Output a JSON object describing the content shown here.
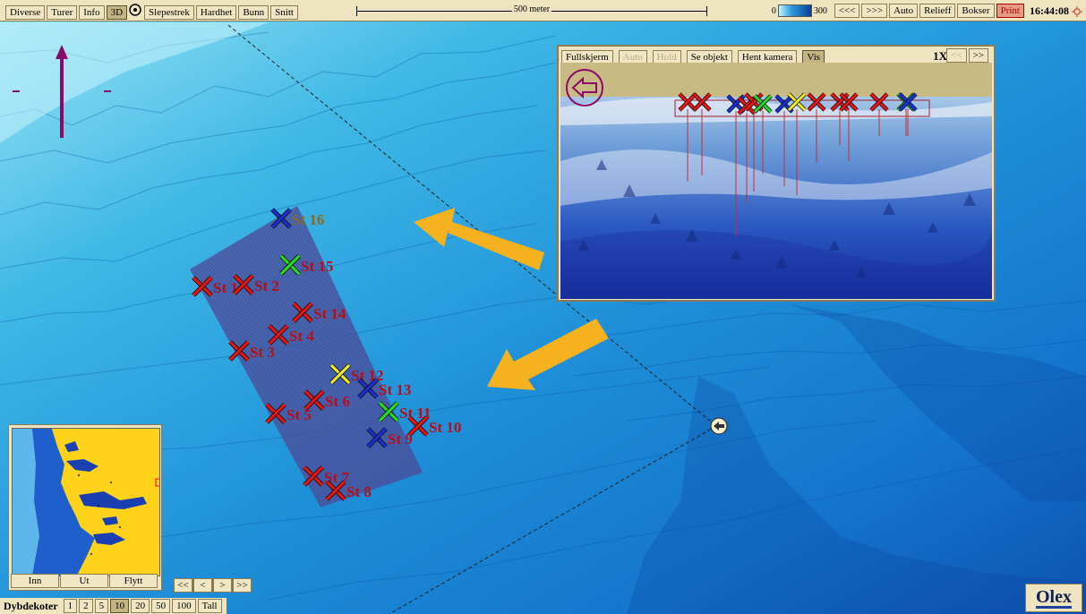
{
  "toolbar": {
    "left_buttons": [
      {
        "label": "Diverse",
        "state": "normal"
      },
      {
        "label": "Turer",
        "state": "normal"
      },
      {
        "label": "Info",
        "state": "normal"
      },
      {
        "label": "3D",
        "state": "on"
      },
      {
        "label": "Slepestrek",
        "state": "normal"
      },
      {
        "label": "Hardhet",
        "state": "normal"
      },
      {
        "label": "Bunn",
        "state": "normal"
      },
      {
        "label": "Snitt",
        "state": "normal"
      }
    ],
    "scale_label": "500 meter",
    "depth_min": "0",
    "depth_max": "300",
    "right_buttons": [
      "<<<",
      ">>>",
      "Auto",
      "Relieff",
      "Bokser"
    ],
    "print_label": "Print",
    "clock": "16:44:08",
    "icons": [
      "target-icon",
      "sun-icon"
    ]
  },
  "viewer": {
    "buttons": [
      {
        "label": "Fullskjerm",
        "state": "normal"
      },
      {
        "label": "Auto",
        "state": "dim"
      },
      {
        "label": "Hold",
        "state": "dim"
      },
      {
        "label": "Se objekt",
        "state": "normal"
      },
      {
        "label": "Hent kamera",
        "state": "normal"
      },
      {
        "label": "Vis",
        "state": "on"
      }
    ],
    "zoom": "1X",
    "nav_buttons": [
      {
        "label": "<<",
        "state": "dim"
      },
      {
        "label": ">>",
        "state": "normal"
      }
    ],
    "back_icon": "arrow-left-circle-icon",
    "marker_colors": [
      "red",
      "red",
      "blue",
      "red",
      "red",
      "green",
      "blue",
      "yellow",
      "red",
      "red",
      "red",
      "red",
      "green",
      "blue"
    ]
  },
  "stations": [
    {
      "label": "St 16",
      "color": "#1a2fd6"
    },
    {
      "label": "St 15",
      "color": "#22dd22"
    },
    {
      "label": "St 1",
      "color": "#ee1111"
    },
    {
      "label": "St 2",
      "color": "#ee1111"
    },
    {
      "label": "St 14",
      "color": "#ee1111"
    },
    {
      "label": "St 4",
      "color": "#ee1111"
    },
    {
      "label": "St 3",
      "color": "#ee1111"
    },
    {
      "label": "St 12",
      "color": "#eeee22"
    },
    {
      "label": "St 13",
      "color": "#1a2fd6"
    },
    {
      "label": "St 6",
      "color": "#ee1111"
    },
    {
      "label": "St 11",
      "color": "#22dd22"
    },
    {
      "label": "St 5",
      "color": "#ee1111"
    },
    {
      "label": "St 10",
      "color": "#ee1111"
    },
    {
      "label": "St 9",
      "color": "#1a2fd6"
    },
    {
      "label": "St 7",
      "color": "#ee1111"
    },
    {
      "label": "St 8",
      "color": "#ee1111"
    }
  ],
  "colors": {
    "panel": "#efe4c0",
    "arrow": "#f5b21e",
    "heading": "#8a0a6a",
    "label_red": "#b5101a",
    "label_brown": "#8a6a20"
  },
  "minimap": {
    "buttons": [
      "Inn",
      "Ut",
      "Flytt"
    ]
  },
  "nav_buttons": [
    "<<",
    "<",
    ">",
    ">>"
  ],
  "bottom": {
    "label": "Dybdekoter",
    "buttons": [
      {
        "label": "1",
        "state": "normal"
      },
      {
        "label": "2",
        "state": "normal"
      },
      {
        "label": "5",
        "state": "normal"
      },
      {
        "label": "10",
        "state": "on"
      },
      {
        "label": "20",
        "state": "normal"
      },
      {
        "label": "50",
        "state": "normal"
      },
      {
        "label": "100",
        "state": "normal"
      },
      {
        "label": "Tall",
        "state": "normal"
      }
    ]
  },
  "logo": "Olex"
}
